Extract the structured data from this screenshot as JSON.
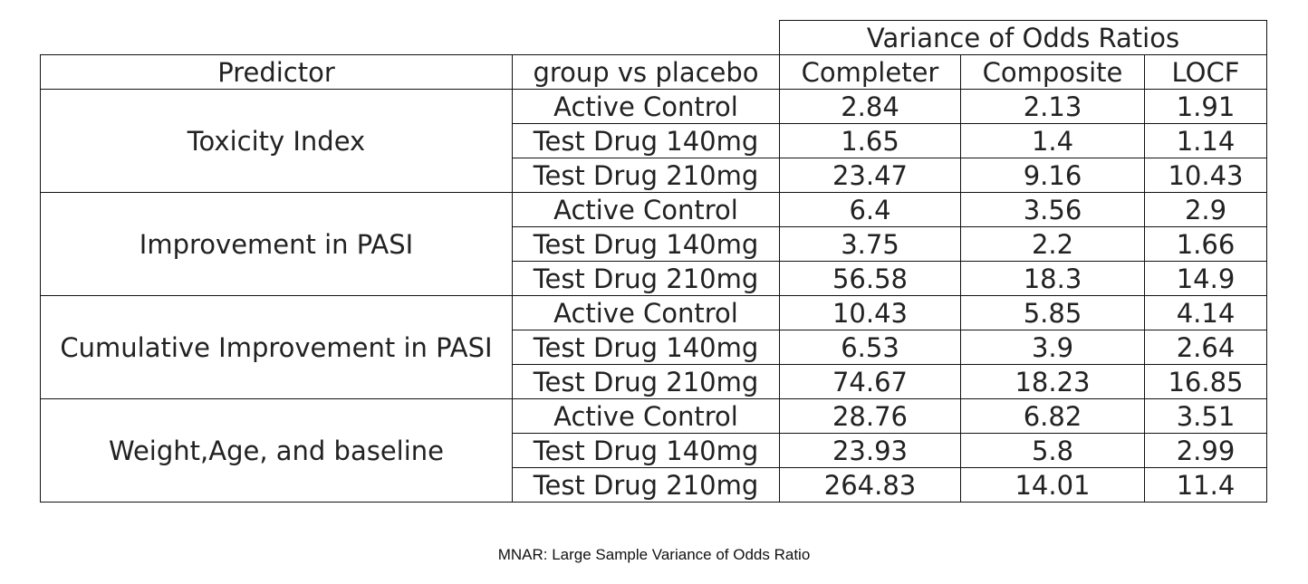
{
  "table": {
    "super_header": "Variance of Odds Ratios",
    "columns": [
      "Predictor",
      "group vs placebo",
      "Completer",
      "Composite",
      "LOCF"
    ],
    "groups": [
      {
        "predictor": "Toxicity Index",
        "rows": [
          {
            "group": "Active Control",
            "completer": "2.84",
            "composite": "2.13",
            "locf": "1.91"
          },
          {
            "group": "Test Drug 140mg",
            "completer": "1.65",
            "composite": "1.4",
            "locf": "1.14"
          },
          {
            "group": "Test Drug 210mg",
            "completer": "23.47",
            "composite": "9.16",
            "locf": "10.43"
          }
        ]
      },
      {
        "predictor": "Improvement in PASI",
        "rows": [
          {
            "group": "Active Control",
            "completer": "6.4",
            "composite": "3.56",
            "locf": "2.9"
          },
          {
            "group": "Test Drug 140mg",
            "completer": "3.75",
            "composite": "2.2",
            "locf": "1.66"
          },
          {
            "group": "Test Drug 210mg",
            "completer": "56.58",
            "composite": "18.3",
            "locf": "14.9"
          }
        ]
      },
      {
        "predictor": "Cumulative Improvement in PASI",
        "rows": [
          {
            "group": "Active Control",
            "completer": "10.43",
            "composite": "5.85",
            "locf": "4.14"
          },
          {
            "group": "Test Drug 140mg",
            "completer": "6.53",
            "composite": "3.9",
            "locf": "2.64"
          },
          {
            "group": "Test Drug 210mg",
            "completer": "74.67",
            "composite": "18.23",
            "locf": "16.85"
          }
        ]
      },
      {
        "predictor": "Weight,Age, and baseline",
        "rows": [
          {
            "group": "Active Control",
            "completer": "28.76",
            "composite": "6.82",
            "locf": "3.51"
          },
          {
            "group": "Test Drug 140mg",
            "completer": "23.93",
            "composite": "5.8",
            "locf": "2.99"
          },
          {
            "group": "Test Drug 210mg",
            "completer": "264.83",
            "composite": "14.01",
            "locf": "11.4"
          }
        ]
      }
    ]
  },
  "caption": "MNAR: Large Sample Variance of Odds Ratio"
}
